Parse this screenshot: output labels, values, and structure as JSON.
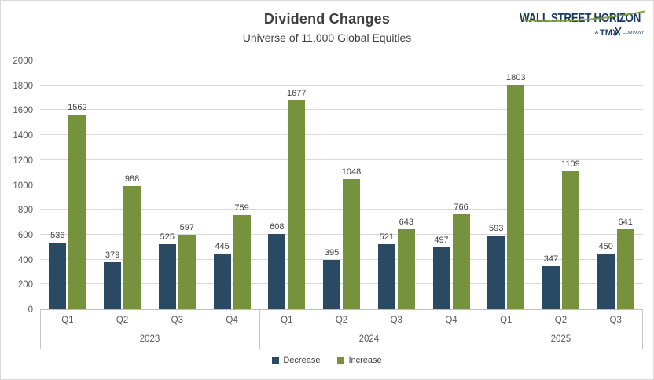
{
  "header": {
    "title": "Dividend Changes",
    "subtitle": "Universe of 11,000 Global Equities"
  },
  "logo": {
    "brand": "WALL STREET HORIZON",
    "sub_a": "A",
    "sub_tmx": "TMX",
    "sub_company": "COMPANY",
    "navy": "#1C3A5E",
    "green": "#7E9C3F"
  },
  "chart_data": {
    "type": "bar",
    "title": "Dividend Changes",
    "subtitle": "Universe of 11,000 Global Equities",
    "categories": [
      "Q1",
      "Q2",
      "Q3",
      "Q4",
      "Q1",
      "Q2",
      "Q3",
      "Q4",
      "Q1",
      "Q2",
      "Q3"
    ],
    "year_groups": [
      {
        "label": "2023",
        "count": 4
      },
      {
        "label": "2024",
        "count": 4
      },
      {
        "label": "2025",
        "count": 3
      }
    ],
    "series": [
      {
        "name": "Decrease",
        "color": "#2A4A63",
        "values": [
          536,
          379,
          525,
          445,
          608,
          395,
          521,
          497,
          593,
          347,
          450
        ]
      },
      {
        "name": "Increase",
        "color": "#76923C",
        "values": [
          1562,
          988,
          597,
          759,
          1677,
          1048,
          643,
          766,
          1803,
          1109,
          641
        ]
      }
    ],
    "ylim": [
      0,
      2000
    ],
    "ytick_step": 200,
    "grid": true,
    "legend_position": "bottom"
  },
  "style": {
    "grid_color": "#d9d9d9",
    "axis_text_color": "#595959",
    "label_text_color": "#404040"
  }
}
